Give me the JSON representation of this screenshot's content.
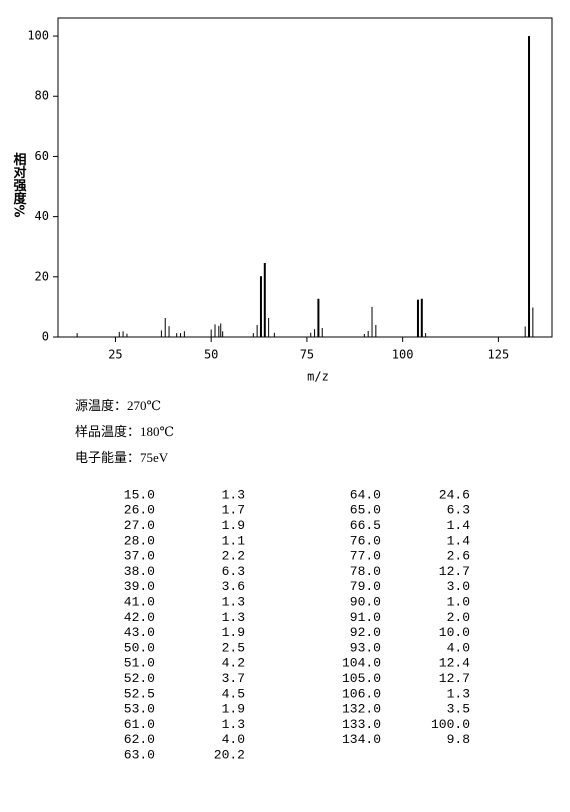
{
  "chart_data": {
    "type": "bar",
    "xlabel": "m/z",
    "ylabel": "相对强度%",
    "x": [
      15,
      26,
      27,
      28,
      37,
      38,
      39,
      41,
      42,
      43,
      50,
      51,
      52,
      52.5,
      53,
      61,
      62,
      63,
      64,
      65,
      66.5,
      76,
      77,
      78,
      79,
      90,
      91,
      92,
      93,
      104,
      105,
      106,
      132,
      133,
      134
    ],
    "values": [
      1.3,
      1.7,
      1.9,
      1.1,
      2.2,
      6.3,
      3.6,
      1.3,
      1.3,
      1.9,
      2.5,
      4.2,
      3.7,
      4.5,
      1.9,
      1.3,
      4.0,
      20.2,
      24.6,
      6.3,
      1.4,
      1.4,
      2.6,
      12.7,
      3.0,
      1.0,
      2.0,
      10.0,
      4.0,
      12.4,
      12.7,
      1.3,
      3.5,
      100.0,
      9.8
    ],
    "color": "#000000",
    "xlim": [
      10,
      139
    ],
    "xticks": [
      25,
      50,
      75,
      100,
      125
    ],
    "ylim": [
      0,
      106
    ],
    "yticks": [
      0,
      20,
      40,
      60,
      80,
      100
    ]
  },
  "conditions": [
    "源温度：270℃",
    "样品温度：180℃",
    "电子能量：75eV"
  ],
  "table": {
    "rows": [
      [
        "15.0",
        "1.3"
      ],
      [
        "26.0",
        "1.7"
      ],
      [
        "27.0",
        "1.9"
      ],
      [
        "28.0",
        "1.1"
      ],
      [
        "37.0",
        "2.2"
      ],
      [
        "38.0",
        "6.3"
      ],
      [
        "39.0",
        "3.6"
      ],
      [
        "41.0",
        "1.3"
      ],
      [
        "42.0",
        "1.3"
      ],
      [
        "43.0",
        "1.9"
      ],
      [
        "50.0",
        "2.5"
      ],
      [
        "51.0",
        "4.2"
      ],
      [
        "52.0",
        "3.7"
      ],
      [
        "52.5",
        "4.5"
      ],
      [
        "53.0",
        "1.9"
      ],
      [
        "61.0",
        "1.3"
      ],
      [
        "62.0",
        "4.0"
      ],
      [
        "63.0",
        "20.2"
      ],
      [
        "64.0",
        "24.6"
      ],
      [
        "65.0",
        "6.3"
      ],
      [
        "66.5",
        "1.4"
      ],
      [
        "76.0",
        "1.4"
      ],
      [
        "77.0",
        "2.6"
      ],
      [
        "78.0",
        "12.7"
      ],
      [
        "79.0",
        "3.0"
      ],
      [
        "90.0",
        "1.0"
      ],
      [
        "91.0",
        "2.0"
      ],
      [
        "92.0",
        "10.0"
      ],
      [
        "93.0",
        "4.0"
      ],
      [
        "104.0",
        "12.4"
      ],
      [
        "105.0",
        "12.7"
      ],
      [
        "106.0",
        "1.3"
      ],
      [
        "132.0",
        "3.5"
      ],
      [
        "133.0",
        "100.0"
      ],
      [
        "134.0",
        "9.8"
      ]
    ]
  }
}
